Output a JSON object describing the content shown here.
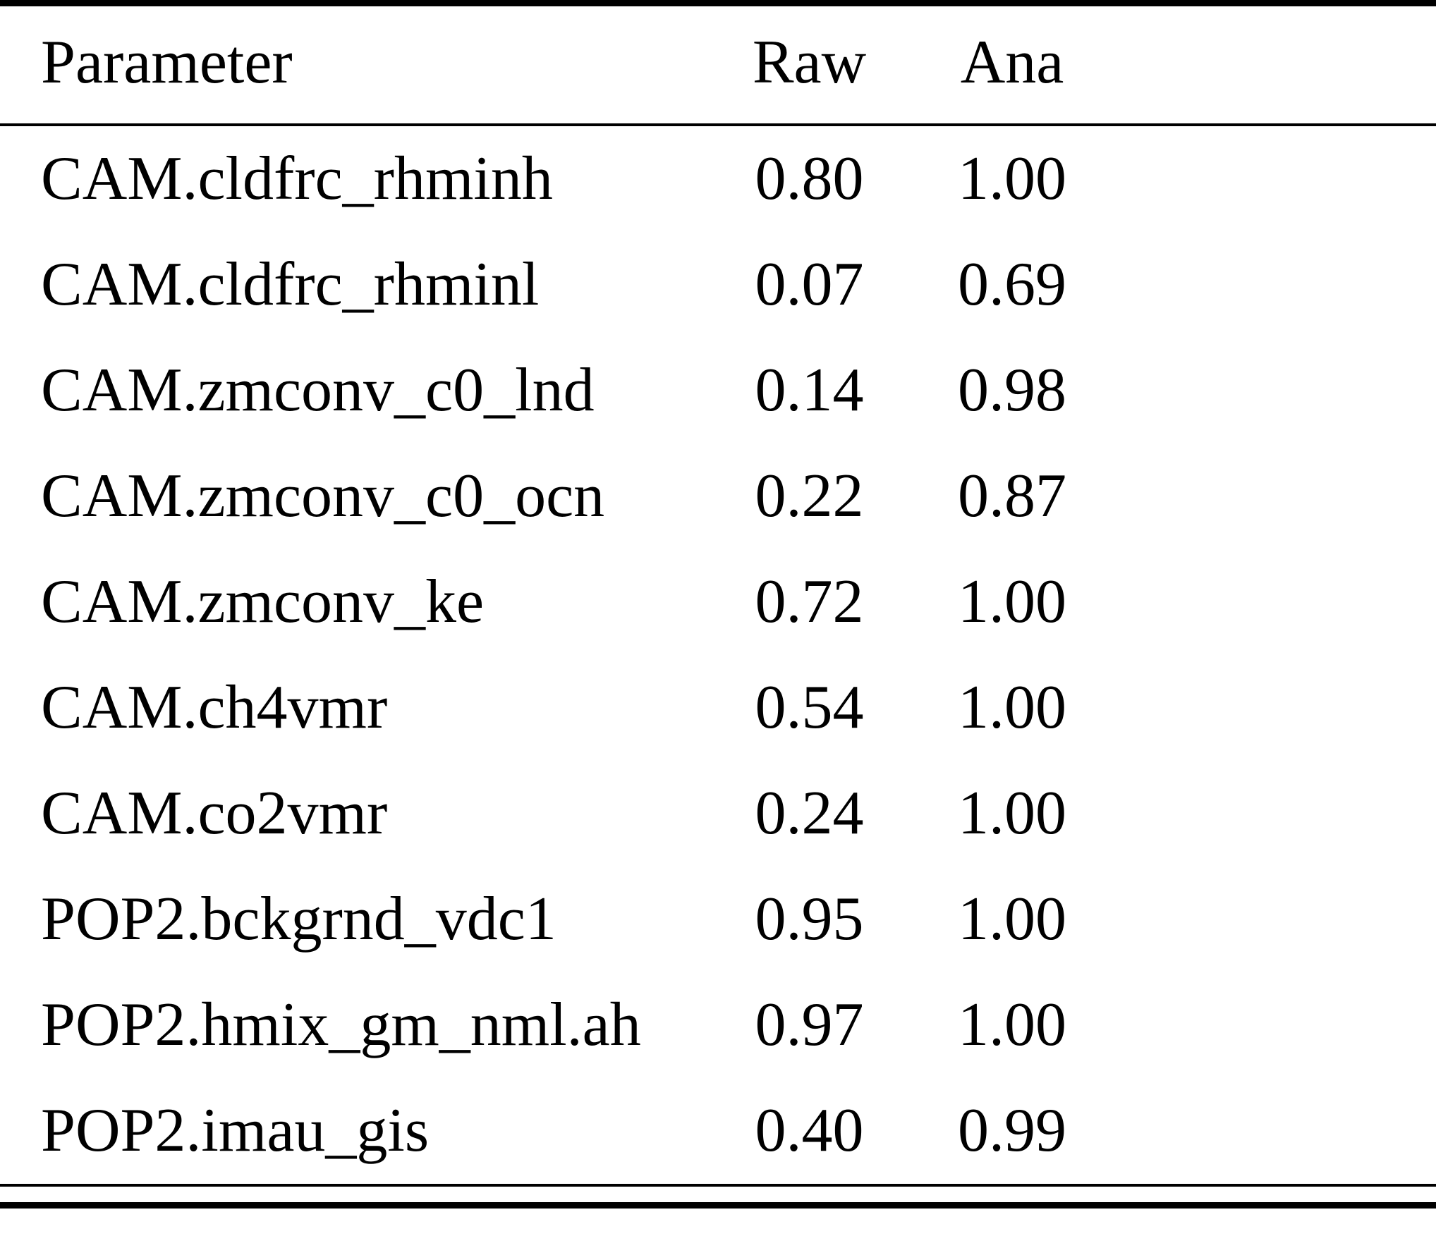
{
  "page": {
    "background": "#ffffff",
    "text_color": "#000000",
    "rule_color": "#000000"
  },
  "table": {
    "headers": [
      "Parameter",
      "Raw",
      "Ana"
    ],
    "rows": [
      {
        "parameter": "CAM.cldfrc_rhminh",
        "raw": "0.80",
        "ana": "1.00"
      },
      {
        "parameter": "CAM.cldfrc_rhminl",
        "raw": "0.07",
        "ana": "0.69"
      },
      {
        "parameter": "CAM.zmconv_c0_lnd",
        "raw": "0.14",
        "ana": "0.98"
      },
      {
        "parameter": "CAM.zmconv_c0_ocn",
        "raw": "0.22",
        "ana": "0.87"
      },
      {
        "parameter": "CAM.zmconv_ke",
        "raw": "0.72",
        "ana": "1.00"
      },
      {
        "parameter": "CAM.ch4vmr",
        "raw": "0.54",
        "ana": "1.00"
      },
      {
        "parameter": "CAM.co2vmr",
        "raw": "0.24",
        "ana": "1.00"
      },
      {
        "parameter": "POP2.bckgrnd_vdc1",
        "raw": "0.95",
        "ana": "1.00"
      },
      {
        "parameter": "POP2.hmix_gm_nml.ah",
        "raw": "0.97",
        "ana": "1.00"
      },
      {
        "parameter": "POP2.imau_gis",
        "raw": "0.40",
        "ana": "0.99"
      }
    ]
  }
}
